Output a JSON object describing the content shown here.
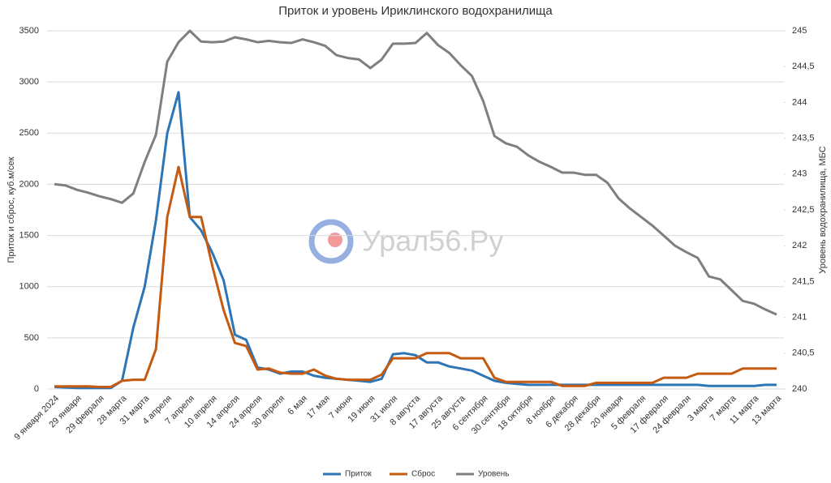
{
  "chart_data": {
    "type": "line",
    "title": "Приток и уровень Ириклинского водохранилища",
    "ylabel": "Приток и сброс, куб.м/сек",
    "y2label": "Уровень водохранилища, МБС",
    "watermark": "Урал56.Ру",
    "categories": [
      "9 января 2024",
      null,
      "29 января",
      null,
      "29 февраля",
      null,
      "28 марта",
      null,
      "31 марта",
      null,
      "4 апреля",
      null,
      "7 апреля",
      null,
      "10 апреля",
      null,
      "14 апреля",
      null,
      "24 апреля",
      null,
      "30 апреля",
      null,
      "6 мая",
      null,
      "17 мая",
      null,
      "7 июня",
      null,
      "19 июня",
      null,
      "31 июля",
      null,
      "8 августа",
      null,
      "17 августа",
      null,
      "25 августа",
      null,
      "6 сентября",
      null,
      "30 сентября",
      null,
      "18 октября",
      null,
      "8 ноября",
      null,
      "6 декабря",
      null,
      "28 декабря",
      null,
      "20 января",
      null,
      "5 февраля",
      null,
      "17 февраля",
      null,
      "24 февраля",
      null,
      "3 марта",
      null,
      "7 марта",
      null,
      "11 марта",
      null,
      "13 марта"
    ],
    "series": [
      {
        "name": "Приток",
        "color": "#2e75b6",
        "axis": "y",
        "values": [
          20,
          15,
          10,
          10,
          10,
          10,
          80,
          600,
          1000,
          1650,
          2500,
          2900,
          1680,
          1550,
          1330,
          1060,
          530,
          480,
          210,
          190,
          150,
          170,
          170,
          130,
          110,
          100,
          90,
          80,
          70,
          100,
          340,
          350,
          330,
          260,
          260,
          220,
          200,
          180,
          130,
          80,
          60,
          50,
          40,
          40,
          40,
          40,
          40,
          40,
          40,
          40,
          40,
          40,
          40,
          40,
          40,
          40,
          40,
          40,
          30,
          30,
          30,
          30,
          30,
          40,
          40
        ]
      },
      {
        "name": "Сброс",
        "color": "#c55a11",
        "axis": "y",
        "values": [
          25,
          25,
          25,
          25,
          20,
          20,
          80,
          90,
          90,
          390,
          1680,
          2170,
          1680,
          1680,
          1200,
          770,
          450,
          420,
          190,
          200,
          160,
          150,
          150,
          190,
          130,
          100,
          90,
          90,
          90,
          140,
          300,
          300,
          300,
          350,
          350,
          350,
          300,
          300,
          300,
          110,
          70,
          70,
          70,
          70,
          70,
          30,
          30,
          30,
          60,
          60,
          60,
          60,
          60,
          60,
          110,
          110,
          110,
          150,
          150,
          150,
          150,
          200,
          200,
          200,
          200
        ]
      },
      {
        "name": "Уровень",
        "color": "#7f7f7f",
        "axis": "y2",
        "values": [
          242.86,
          242.84,
          242.78,
          242.74,
          242.69,
          242.65,
          242.6,
          242.73,
          243.17,
          243.55,
          244.57,
          244.84,
          245,
          244.85,
          244.84,
          244.85,
          244.91,
          244.88,
          244.84,
          244.86,
          244.84,
          244.83,
          244.88,
          244.84,
          244.79,
          244.66,
          244.62,
          244.6,
          244.48,
          244.6,
          244.82,
          244.82,
          244.83,
          244.97,
          244.8,
          244.69,
          244.52,
          244.37,
          244.02,
          243.53,
          243.43,
          243.38,
          243.26,
          243.17,
          243.1,
          243.02,
          243.02,
          242.99,
          242.99,
          242.88,
          242.66,
          242.52,
          242.4,
          242.28,
          242.14,
          242,
          241.91,
          241.83,
          241.57,
          241.53,
          241.38,
          241.23,
          241.19,
          241.11,
          241.04
        ]
      }
    ],
    "ylim": [
      0,
      3500
    ],
    "yticks": [
      0,
      500,
      1000,
      1500,
      2000,
      2500,
      3000,
      3500
    ],
    "y2lim": [
      240,
      245
    ],
    "y2ticks": [
      240,
      {
        "value": 240.5,
        "label": "240,5"
      },
      241,
      {
        "value": 241.5,
        "label": "241,5"
      },
      242,
      {
        "value": 242.5,
        "label": "242,5"
      },
      243,
      {
        "value": 243.5,
        "label": "243,5"
      },
      244,
      {
        "value": 244.5,
        "label": "244,5"
      },
      245
    ],
    "grid": true,
    "legend": "bottom"
  }
}
